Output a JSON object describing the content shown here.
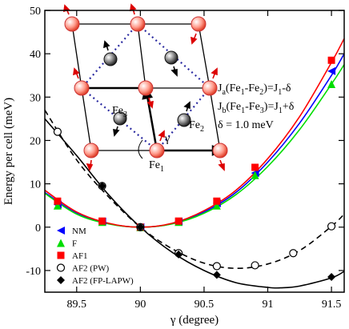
{
  "chart_data": {
    "type": "line",
    "xlabel": "γ (degree)",
    "ylabel": "Energy per cell (meV)",
    "xlim": [
      89.25,
      91.6
    ],
    "ylim": [
      -15,
      50
    ],
    "x_ticks": [
      "89.5",
      "90",
      "90.5",
      "91",
      "91.5"
    ],
    "x_tick_values": [
      89.5,
      90,
      90.5,
      91,
      91.5
    ],
    "y_ticks": [
      "-10",
      "0",
      "10",
      "20",
      "30",
      "40",
      "50"
    ],
    "y_tick_values": [
      -10,
      0,
      10,
      20,
      30,
      40,
      50
    ],
    "series": [
      {
        "name": "NM",
        "marker": "triangle-left",
        "color": "#0000ff",
        "points": [
          [
            89.35,
            5.2
          ],
          [
            89.7,
            1.3
          ],
          [
            90.0,
            0.0
          ],
          [
            90.3,
            1.3
          ],
          [
            90.6,
            5.5
          ],
          [
            90.9,
            12.5
          ],
          [
            91.5,
            36.0
          ]
        ],
        "curve": [
          [
            89.25,
            8.0
          ],
          [
            89.5,
            3.2
          ],
          [
            89.75,
            0.8
          ],
          [
            90.0,
            0.0
          ],
          [
            90.25,
            0.8
          ],
          [
            90.5,
            3.5
          ],
          [
            90.75,
            8.0
          ],
          [
            91.0,
            15.0
          ],
          [
            91.25,
            24.0
          ],
          [
            91.5,
            35.0
          ],
          [
            91.6,
            40.0
          ]
        ]
      },
      {
        "name": "F",
        "marker": "triangle-up",
        "color": "#00dd00",
        "points": [
          [
            89.35,
            5.0
          ],
          [
            89.7,
            1.2
          ],
          [
            90.0,
            0.0
          ],
          [
            90.3,
            1.2
          ],
          [
            90.6,
            5.0
          ],
          [
            90.9,
            12.0
          ],
          [
            91.5,
            33.0
          ]
        ],
        "curve": [
          [
            89.25,
            7.8
          ],
          [
            89.5,
            3.0
          ],
          [
            89.75,
            0.75
          ],
          [
            90.0,
            0.0
          ],
          [
            90.25,
            0.75
          ],
          [
            90.5,
            3.2
          ],
          [
            90.75,
            7.5
          ],
          [
            91.0,
            14.0
          ],
          [
            91.25,
            22.5
          ],
          [
            91.5,
            33.0
          ],
          [
            91.6,
            37.5
          ]
        ]
      },
      {
        "name": "AF1",
        "marker": "square",
        "color": "#ff0000",
        "points": [
          [
            89.35,
            6.0
          ],
          [
            89.7,
            1.4
          ],
          [
            90.0,
            0.0
          ],
          [
            90.3,
            1.4
          ],
          [
            90.6,
            6.0
          ],
          [
            90.9,
            13.8
          ],
          [
            91.5,
            38.5
          ]
        ],
        "curve": [
          [
            89.25,
            8.5
          ],
          [
            89.5,
            3.5
          ],
          [
            89.75,
            0.9
          ],
          [
            90.0,
            0.0
          ],
          [
            90.25,
            0.9
          ],
          [
            90.5,
            3.8
          ],
          [
            90.75,
            8.5
          ],
          [
            91.0,
            15.8
          ],
          [
            91.25,
            25.5
          ],
          [
            91.5,
            38.0
          ],
          [
            91.6,
            43.5
          ]
        ]
      },
      {
        "name": "AF2 (PW)",
        "marker": "circle-open",
        "color": "#000000",
        "dashed": true,
        "points": [
          [
            89.35,
            22.0
          ],
          [
            89.7,
            9.5
          ],
          [
            90.0,
            0.0
          ],
          [
            90.3,
            -6.0
          ],
          [
            90.6,
            -9.0
          ],
          [
            90.9,
            -8.8
          ],
          [
            91.2,
            -6.0
          ],
          [
            91.5,
            0.2
          ]
        ],
        "curve": [
          [
            89.25,
            27.0
          ],
          [
            89.5,
            15.5
          ],
          [
            89.75,
            7.0
          ],
          [
            90.0,
            0.0
          ],
          [
            90.25,
            -5.0
          ],
          [
            90.5,
            -8.3
          ],
          [
            90.75,
            -9.5
          ],
          [
            91.0,
            -8.5
          ],
          [
            91.25,
            -5.4
          ],
          [
            91.5,
            0.2
          ],
          [
            91.6,
            3.0
          ]
        ]
      },
      {
        "name": "AF2  (FP-LAPW)",
        "marker": "diamond",
        "color": "#000000",
        "points": [
          [
            89.7,
            9.5
          ],
          [
            90.0,
            0.0
          ],
          [
            90.3,
            -6.3
          ],
          [
            90.6,
            -11.0
          ],
          [
            91.5,
            -11.5
          ]
        ],
        "curve": [
          [
            89.25,
            25.0
          ],
          [
            89.5,
            16.5
          ],
          [
            89.75,
            7.5
          ],
          [
            90.0,
            0.0
          ],
          [
            90.25,
            -5.8
          ],
          [
            90.5,
            -10.0
          ],
          [
            90.75,
            -12.8
          ],
          [
            91.0,
            -13.9
          ],
          [
            91.1,
            -14.0
          ],
          [
            91.25,
            -13.6
          ],
          [
            91.5,
            -11.7
          ],
          [
            91.6,
            -10.2
          ]
        ]
      }
    ],
    "annotations": {
      "ja": "J",
      "ja_sub": "a",
      "ja_rest": "(Fe",
      "ja_sub1": "1",
      "ja_dash": "-Fe",
      "ja_sub2": "2",
      "ja_val": ")=J",
      "ja_sub3": "1",
      "ja_end": "-δ",
      "jb": "J",
      "jb_sub": "b",
      "jb_rest": "(Fe",
      "jb_sub1": "1",
      "jb_dash": "-Fe",
      "jb_sub2": "3",
      "jb_val": ")=J",
      "jb_sub3": "1",
      "jb_end": "+δ",
      "delta": "δ = 1.0 meV",
      "fe1": "Fe",
      "fe1_sub": "1",
      "fe2": "Fe",
      "fe2_sub": "2",
      "fe3": "Fe",
      "fe3_sub": "3",
      "gamma": "γ"
    }
  }
}
